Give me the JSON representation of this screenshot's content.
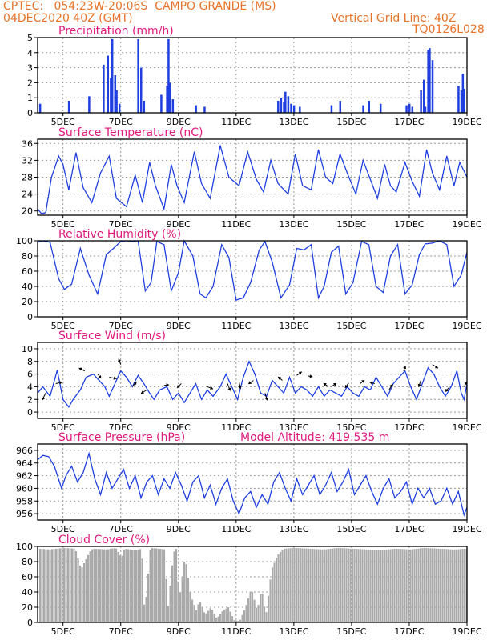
{
  "header": {
    "line1": "CPTEC:   054:23W-20:06S  CAMPO GRANDE (MS)",
    "line2": "04DEC2020 40Z (GMT)",
    "grid_note": "Vertical Grid Line: 40Z",
    "code": "TQ0126L028"
  },
  "colors": {
    "header": "#e8742a",
    "title": "#e0197e",
    "series": "#1f3fe0",
    "cloud": "#aaaaaa",
    "grid": "#999999"
  },
  "x_ticks": [
    "5DEC",
    "7DEC",
    "9DEC",
    "11DEC",
    "13DEC",
    "15DEC",
    "17DEC",
    "19DEC"
  ],
  "x_tick_days": [
    5,
    7,
    9,
    11,
    13,
    15,
    17,
    19
  ],
  "x_range": [
    4.12,
    19.0
  ],
  "chart_data": [
    {
      "id": "precip",
      "type": "bar",
      "title": "Precipitation (mm/h)",
      "ylim": [
        0,
        5
      ],
      "yticks": [
        0,
        1,
        2,
        3,
        4,
        5
      ],
      "x": [
        4.2,
        5.2,
        5.9,
        6.4,
        6.55,
        6.65,
        6.7,
        6.8,
        6.85,
        6.95,
        7.6,
        7.7,
        7.8,
        8.4,
        8.6,
        8.65,
        8.7,
        8.8,
        9.6,
        9.9,
        12.45,
        12.55,
        12.65,
        12.7,
        12.8,
        12.9,
        13.0,
        13.2,
        14.3,
        14.6,
        15.4,
        15.6,
        16.0,
        16.9,
        17.0,
        17.1,
        17.4,
        17.5,
        17.55,
        17.65,
        17.7,
        17.8,
        18.7,
        18.8,
        18.85,
        18.9
      ],
      "values": [
        0.6,
        0.8,
        1.1,
        3.2,
        3.8,
        2.3,
        4.9,
        2.5,
        1.5,
        0.6,
        4.9,
        3.0,
        0.8,
        1.2,
        1.8,
        4.9,
        2.0,
        0.9,
        0.5,
        0.4,
        0.8,
        1.0,
        0.7,
        1.4,
        1.1,
        0.6,
        0.5,
        0.4,
        0.5,
        0.8,
        0.5,
        0.8,
        0.6,
        0.5,
        0.6,
        0.4,
        1.5,
        2.2,
        0.4,
        4.2,
        4.3,
        3.5,
        1.8,
        1.5,
        2.6,
        1.6
      ]
    },
    {
      "id": "temp",
      "type": "line",
      "title": "Surface Temperature (nC)",
      "ylim": [
        19,
        37
      ],
      "yticks": [
        20,
        24,
        28,
        32,
        36
      ],
      "x": [
        4.12,
        4.25,
        4.4,
        4.6,
        4.85,
        5.0,
        5.2,
        5.45,
        5.7,
        6.0,
        6.3,
        6.6,
        6.85,
        7.2,
        7.5,
        7.75,
        8.0,
        8.2,
        8.5,
        8.75,
        8.95,
        9.2,
        9.55,
        9.8,
        10.1,
        10.45,
        10.75,
        11.1,
        11.4,
        11.7,
        11.95,
        12.2,
        12.45,
        12.8,
        13.05,
        13.3,
        13.6,
        13.85,
        14.1,
        14.35,
        14.6,
        14.85,
        15.15,
        15.4,
        15.65,
        15.9,
        16.15,
        16.35,
        16.55,
        16.85,
        17.1,
        17.35,
        17.6,
        17.8,
        18.05,
        18.3,
        18.55,
        18.75,
        19.0
      ],
      "values": [
        20.5,
        19.4,
        19.6,
        28.0,
        33.0,
        31.0,
        25.0,
        33.8,
        25.5,
        22.0,
        29.0,
        33.0,
        23.0,
        21.0,
        28.5,
        22.0,
        31.5,
        26.0,
        20.5,
        31.0,
        26.0,
        22.0,
        34.0,
        26.5,
        23.0,
        35.5,
        28.0,
        26.0,
        34.0,
        27.5,
        24.5,
        32.0,
        26.5,
        24.0,
        33.5,
        26.0,
        25.0,
        34.5,
        28.0,
        26.5,
        33.5,
        29.0,
        24.0,
        32.0,
        27.5,
        23.0,
        31.0,
        26.0,
        24.5,
        31.5,
        27.0,
        23.5,
        34.5,
        29.0,
        25.0,
        33.0,
        26.0,
        31.5,
        28.0
      ]
    },
    {
      "id": "rh",
      "type": "line",
      "title": "Relative Humidity (%)",
      "ylim": [
        0,
        100
      ],
      "yticks": [
        0,
        20,
        40,
        60,
        80,
        100
      ],
      "x": [
        4.12,
        4.3,
        4.55,
        4.85,
        5.05,
        5.3,
        5.6,
        5.9,
        6.2,
        6.5,
        6.75,
        7.0,
        7.2,
        7.4,
        7.6,
        7.85,
        8.05,
        8.25,
        8.5,
        8.75,
        9.0,
        9.2,
        9.5,
        9.75,
        9.95,
        10.2,
        10.5,
        10.75,
        11.0,
        11.25,
        11.5,
        11.8,
        12.0,
        12.25,
        12.55,
        12.85,
        13.1,
        13.35,
        13.6,
        13.85,
        14.05,
        14.3,
        14.55,
        14.8,
        15.05,
        15.35,
        15.6,
        15.85,
        16.1,
        16.35,
        16.6,
        16.85,
        17.1,
        17.35,
        17.55,
        17.8,
        18.05,
        18.3,
        18.55,
        18.8,
        19.0
      ],
      "values": [
        98.0,
        100.0,
        98.0,
        50.0,
        36.0,
        43.0,
        90.0,
        55.0,
        30.0,
        82.0,
        90.0,
        99.0,
        100.0,
        99.0,
        100.0,
        34.0,
        45.0,
        99.0,
        95.0,
        34.0,
        58.0,
        100.0,
        80.0,
        30.0,
        25.0,
        40.0,
        95.0,
        78.0,
        22.0,
        25.0,
        45.0,
        88.0,
        99.0,
        72.0,
        25.0,
        42.0,
        90.0,
        88.0,
        95.0,
        25.0,
        40.0,
        85.0,
        93.0,
        30.0,
        45.0,
        99.0,
        95.0,
        40.0,
        32.0,
        80.0,
        95.0,
        30.0,
        42.0,
        82.0,
        96.0,
        97.0,
        100.0,
        95.0,
        40.0,
        55.0,
        85.0
      ]
    },
    {
      "id": "wind",
      "type": "line",
      "title": "Surface Wind (m/s)",
      "ylim": [
        -1,
        11
      ],
      "yticks": [
        0,
        2,
        4,
        6,
        8,
        10
      ],
      "x": [
        4.12,
        4.3,
        4.55,
        4.8,
        5.0,
        5.2,
        5.35,
        5.6,
        5.8,
        6.05,
        6.25,
        6.45,
        6.6,
        6.8,
        7.0,
        7.2,
        7.4,
        7.6,
        7.8,
        8.0,
        8.15,
        8.35,
        8.6,
        8.8,
        9.0,
        9.2,
        9.4,
        9.6,
        9.8,
        10.0,
        10.2,
        10.45,
        10.65,
        10.85,
        11.05,
        11.25,
        11.45,
        11.65,
        11.85,
        12.05,
        12.25,
        12.45,
        12.65,
        12.85,
        13.05,
        13.25,
        13.45,
        13.65,
        13.85,
        14.05,
        14.25,
        14.45,
        14.65,
        14.85,
        15.05,
        15.25,
        15.45,
        15.65,
        15.85,
        16.05,
        16.25,
        16.45,
        16.65,
        16.85,
        17.05,
        17.25,
        17.45,
        17.65,
        17.85,
        18.05,
        18.25,
        18.45,
        18.65,
        18.8,
        18.9,
        19.0
      ],
      "values": [
        3.0,
        4.0,
        2.5,
        6.6,
        2.0,
        0.8,
        2.0,
        3.5,
        5.5,
        6.0,
        5.0,
        4.0,
        2.5,
        4.5,
        6.5,
        5.5,
        4.0,
        5.8,
        4.5,
        3.0,
        2.0,
        3.5,
        4.0,
        2.0,
        3.0,
        1.5,
        3.0,
        4.5,
        2.0,
        3.5,
        2.5,
        4.0,
        6.0,
        4.0,
        2.0,
        5.5,
        8.0,
        6.0,
        3.0,
        2.5,
        5.0,
        4.0,
        3.0,
        5.5,
        3.0,
        4.0,
        3.5,
        2.5,
        4.0,
        2.5,
        3.5,
        3.0,
        2.5,
        4.0,
        3.0,
        2.5,
        4.0,
        3.5,
        5.5,
        4.0,
        2.5,
        4.5,
        5.5,
        6.5,
        4.0,
        2.0,
        4.5,
        7.0,
        6.0,
        4.0,
        2.5,
        4.0,
        6.5,
        3.0,
        2.0,
        4.5
      ],
      "vectors": [
        {
          "x": 4.4,
          "y": 3.0,
          "dx": -0.5,
          "dy": -1.0
        },
        {
          "x": 4.75,
          "y": 4.5,
          "dx": 0.9,
          "dy": 0.2
        },
        {
          "x": 5.75,
          "y": 6.5,
          "dx": -0.8,
          "dy": 0.4
        },
        {
          "x": 6.2,
          "y": 6.0,
          "dx": 0.5,
          "dy": -0.6
        },
        {
          "x": 6.6,
          "y": 5.5,
          "dx": 1.0,
          "dy": -0.2
        },
        {
          "x": 7.0,
          "y": 7.5,
          "dx": -0.3,
          "dy": 0.8
        },
        {
          "x": 7.4,
          "y": 4.0,
          "dx": 0.6,
          "dy": 0.7
        },
        {
          "x": 7.9,
          "y": 3.5,
          "dx": -0.8,
          "dy": -0.5
        },
        {
          "x": 8.5,
          "y": 4.2,
          "dx": 0.7,
          "dy": 0.1
        },
        {
          "x": 9.1,
          "y": 4.5,
          "dx": -0.6,
          "dy": -0.6
        },
        {
          "x": 10.0,
          "y": 4.0,
          "dx": 0.8,
          "dy": -0.3
        },
        {
          "x": 10.7,
          "y": 4.5,
          "dx": 0.4,
          "dy": -1.0
        },
        {
          "x": 11.1,
          "y": 4.8,
          "dx": 0.2,
          "dy": -1.0
        },
        {
          "x": 11.6,
          "y": 5.0,
          "dx": -0.7,
          "dy": -0.5
        },
        {
          "x": 12.0,
          "y": 3.0,
          "dx": 0.3,
          "dy": -1.0
        },
        {
          "x": 12.6,
          "y": 5.0,
          "dx": -0.6,
          "dy": 0.5
        },
        {
          "x": 13.1,
          "y": 5.8,
          "dx": 0.7,
          "dy": 0.5
        },
        {
          "x": 13.5,
          "y": 5.7,
          "dx": 0.6,
          "dy": -0.1
        },
        {
          "x": 14.2,
          "y": 4.0,
          "dx": -0.7,
          "dy": 0.5
        },
        {
          "x": 14.3,
          "y": 4.0,
          "dx": 0.7,
          "dy": 0.5
        },
        {
          "x": 14.9,
          "y": 4.6,
          "dx": -0.5,
          "dy": -0.7
        },
        {
          "x": 15.3,
          "y": 4.5,
          "dx": 0.6,
          "dy": 0.5
        },
        {
          "x": 15.8,
          "y": 4.5,
          "dx": -0.7,
          "dy": 0.2
        },
        {
          "x": 16.3,
          "y": 3.5,
          "dx": 0.5,
          "dy": 0.8
        },
        {
          "x": 16.8,
          "y": 6.5,
          "dx": 0.3,
          "dy": 0.7
        },
        {
          "x": 17.4,
          "y": 5.0,
          "dx": -0.3,
          "dy": -0.9
        },
        {
          "x": 17.8,
          "y": 7.5,
          "dx": 0.8,
          "dy": -0.5
        },
        {
          "x": 18.4,
          "y": 4.0,
          "dx": -0.6,
          "dy": -0.7
        },
        {
          "x": 18.9,
          "y": 4.0,
          "dx": 0.4,
          "dy": 0.7
        }
      ]
    },
    {
      "id": "pres",
      "type": "line",
      "title": "Surface Pressure (hPa)",
      "subtitle": "Model Altitude: 419.535 m",
      "ylim": [
        955,
        967
      ],
      "yticks": [
        956,
        958,
        960,
        962,
        964,
        966
      ],
      "x": [
        4.12,
        4.3,
        4.5,
        4.7,
        4.95,
        5.1,
        5.3,
        5.5,
        5.7,
        5.9,
        6.1,
        6.3,
        6.5,
        6.7,
        6.9,
        7.1,
        7.3,
        7.5,
        7.7,
        7.9,
        8.1,
        8.3,
        8.5,
        8.7,
        8.9,
        9.1,
        9.3,
        9.5,
        9.7,
        9.9,
        10.1,
        10.3,
        10.5,
        10.7,
        10.9,
        11.1,
        11.3,
        11.5,
        11.7,
        11.9,
        12.1,
        12.3,
        12.5,
        12.7,
        12.9,
        13.1,
        13.3,
        13.5,
        13.7,
        13.9,
        14.1,
        14.3,
        14.5,
        14.7,
        14.9,
        15.1,
        15.3,
        15.5,
        15.7,
        15.9,
        16.1,
        16.3,
        16.5,
        16.7,
        16.9,
        17.1,
        17.3,
        17.5,
        17.7,
        17.9,
        18.1,
        18.3,
        18.5,
        18.7,
        18.9,
        19.0
      ],
      "values": [
        964.5,
        965.2,
        965.0,
        963.5,
        960.0,
        962.0,
        963.5,
        961.0,
        962.5,
        965.5,
        961.5,
        959.0,
        962.5,
        960.0,
        961.5,
        963.0,
        960.0,
        962.0,
        958.5,
        961.0,
        962.0,
        959.0,
        961.5,
        960.0,
        962.5,
        960.5,
        958.0,
        961.0,
        962.0,
        958.5,
        960.5,
        957.5,
        960.0,
        961.5,
        958.0,
        956.0,
        958.5,
        959.5,
        957.0,
        959.0,
        957.5,
        961.0,
        962.5,
        960.0,
        958.0,
        961.5,
        959.0,
        960.5,
        962.0,
        959.0,
        960.5,
        962.5,
        959.5,
        961.0,
        963.0,
        959.0,
        960.5,
        962.0,
        959.5,
        957.5,
        960.0,
        961.5,
        958.5,
        959.5,
        961.0,
        957.5,
        960.0,
        958.5,
        960.0,
        957.5,
        958.0,
        960.0,
        957.5,
        959.5,
        955.8,
        957.0
      ]
    },
    {
      "id": "cloud",
      "type": "area",
      "title": "Cloud Cover (%)",
      "ylim": [
        0,
        100
      ],
      "yticks": [
        0,
        20,
        40,
        60,
        80,
        100
      ],
      "x": [
        4.12,
        4.5,
        5.0,
        5.4,
        5.6,
        5.9,
        6.0,
        6.5,
        6.8,
        7.0,
        7.1,
        7.5,
        7.7,
        7.8,
        8.0,
        8.3,
        8.5,
        8.6,
        8.8,
        8.9,
        9.0,
        9.2,
        9.4,
        9.6,
        9.7,
        9.9,
        10.1,
        10.3,
        10.5,
        10.7,
        10.9,
        11.1,
        11.3,
        11.5,
        11.7,
        11.85,
        12.0,
        12.2,
        12.4,
        12.6,
        13.0,
        13.5,
        14.0,
        14.5,
        15.0,
        15.5,
        16.0,
        16.5,
        17.0,
        17.5,
        18.0,
        18.5,
        19.0
      ],
      "values": [
        97,
        96,
        98,
        97,
        70,
        93,
        97,
        96,
        98,
        85,
        97,
        95,
        97,
        10,
        98,
        97,
        96,
        15,
        92,
        97,
        30,
        88,
        35,
        15,
        30,
        10,
        20,
        5,
        15,
        20,
        3,
        2,
        20,
        45,
        15,
        45,
        8,
        70,
        88,
        97,
        98,
        97,
        96,
        98,
        97,
        96,
        95,
        97,
        96,
        98,
        97,
        96,
        97
      ]
    }
  ]
}
